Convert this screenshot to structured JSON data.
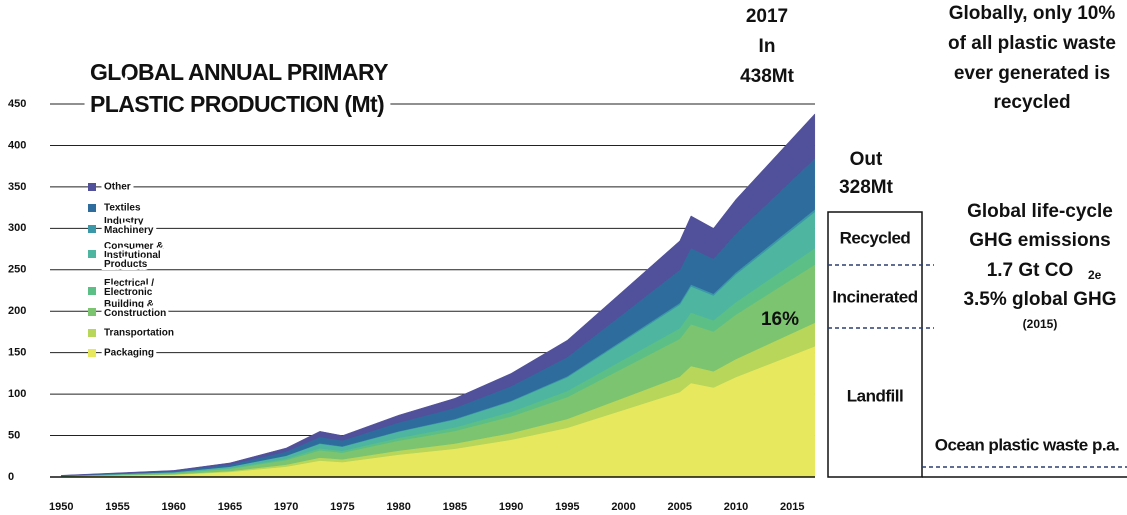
{
  "chart_data": {
    "type": "stacked_area",
    "title": [
      "GLOBAL ANNUAL PRIMARY",
      "PLASTIC PRODUCTION (Mt)"
    ],
    "x": [
      1950,
      1960,
      1965,
      1970,
      1973,
      1975,
      1980,
      1985,
      1990,
      1995,
      2000,
      2005,
      2006,
      2008,
      2010,
      2017
    ],
    "series": [
      {
        "name": "Packaging",
        "color": "#e8e85e",
        "values": [
          0.7,
          2.9,
          6.1,
          12.6,
          19.8,
          18,
          27,
          34.2,
          45,
          59.4,
          81,
          102.6,
          113.4,
          108,
          120.6,
          157.7
        ]
      },
      {
        "name": "Transportation",
        "color": "#b8d65a",
        "values": [
          0.1,
          0.5,
          1.1,
          2.3,
          3.6,
          3.3,
          4.9,
          6.2,
          8.1,
          10.7,
          14.6,
          18.5,
          20.5,
          19.5,
          21.8,
          28.5
        ]
      },
      {
        "name": "Building & Construction",
        "color": "#7cc46f",
        "values": [
          0.3,
          1.3,
          2.7,
          5.6,
          8.8,
          8,
          12,
          15.2,
          20,
          26.4,
          36,
          45.6,
          50.4,
          48,
          53.6,
          70.1
        ]
      },
      {
        "name": "Electrical / Electronic",
        "color": "#5cbf86",
        "values": [
          0.1,
          0.4,
          0.8,
          1.6,
          2.5,
          2.3,
          3.4,
          4.3,
          5.6,
          7.4,
          10.1,
          12.8,
          14.2,
          13.5,
          15.1,
          19.7
        ]
      },
      {
        "name": "Consumer & Institutional Products",
        "color": "#4db5a0",
        "values": [
          0.2,
          0.8,
          1.7,
          3.5,
          5.5,
          5,
          7.5,
          9.5,
          12.5,
          16.5,
          22.5,
          28.5,
          31.5,
          30,
          33.5,
          43.8
        ]
      },
      {
        "name": "Industry Machinery",
        "color": "#3a98a8",
        "values": [
          0,
          0.1,
          0.1,
          0.2,
          0.4,
          0.4,
          0.5,
          0.7,
          0.9,
          1.2,
          1.6,
          2,
          2.2,
          2.1,
          2.3,
          3.1
        ]
      },
      {
        "name": "Textiles",
        "color": "#2e6c9e",
        "values": [
          0.3,
          1.1,
          2.4,
          4.9,
          7.7,
          7,
          10.5,
          13.3,
          17.5,
          23.1,
          31.5,
          39.9,
          44.1,
          42,
          46.9,
          61.3
        ]
      },
      {
        "name": "Other",
        "color": "#51509a",
        "values": [
          0.3,
          0.9,
          2.1,
          4.3,
          6.8,
          6,
          8.7,
          11.6,
          15.4,
          20.3,
          27.7,
          35.1,
          38.7,
          36.9,
          41.2,
          53.8
        ]
      }
    ],
    "xlim": [
      1949,
      2018
    ],
    "xticks": [
      1950,
      1955,
      1960,
      1965,
      1970,
      1975,
      1980,
      1985,
      1990,
      1995,
      2000,
      2005,
      2010,
      2015
    ],
    "ylim": [
      0,
      450
    ],
    "yticks": [
      0,
      50,
      100,
      150,
      200,
      250,
      300,
      350,
      400,
      450
    ],
    "grid": true,
    "annotations": {
      "in_year": "2017",
      "in_label": "In",
      "in_value": "438Mt",
      "out_label": "Out",
      "out_value": "328Mt",
      "recycled": "Recycled",
      "incinerated": "Incinerated",
      "landfill": "Landfill",
      "share": "16%",
      "ocean": "Ocean plastic waste p.a.",
      "recycled_note": [
        "Globally, only 10%",
        "of all plastic waste",
        "ever generated is",
        "recycled"
      ],
      "ghg_title": [
        "Global life-cycle",
        "GHG emissions"
      ],
      "ghg_value": "1.7 Gt CO",
      "ghg_subscript": "2e",
      "ghg_share": "3.5% global GHG",
      "ghg_year": "(2015)"
    }
  }
}
